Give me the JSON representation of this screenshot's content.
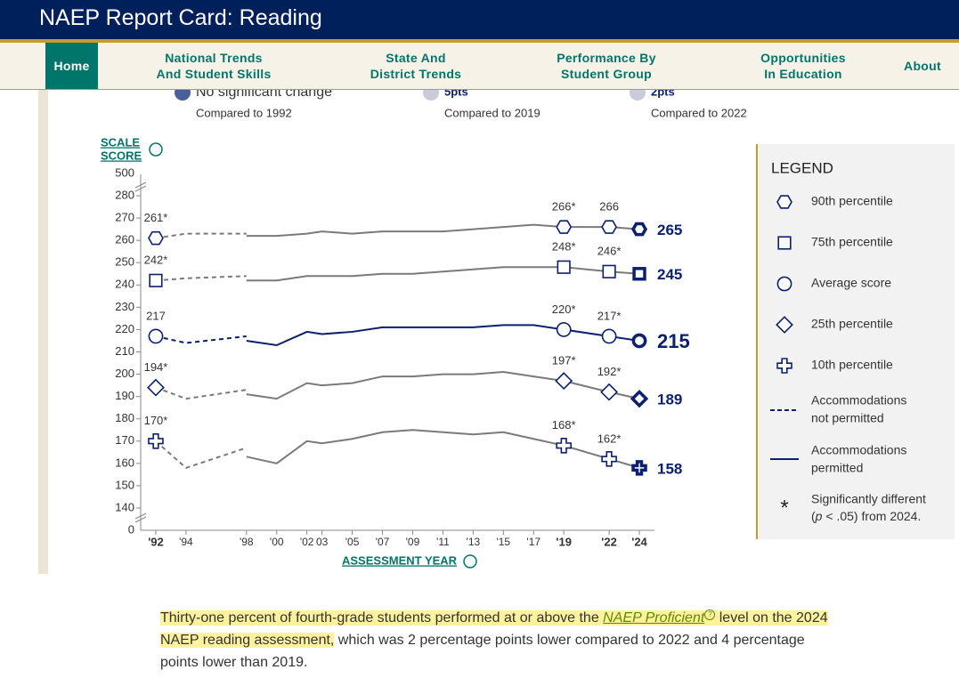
{
  "header": {
    "title": "NAEP Report Card: Reading"
  },
  "nav": {
    "items": [
      {
        "lines": [
          "Home"
        ]
      },
      {
        "lines": [
          "National Trends",
          "And Student Skills"
        ]
      },
      {
        "lines": [
          "State And",
          "District Trends"
        ]
      },
      {
        "lines": [
          "Performance By",
          "Student Group"
        ]
      },
      {
        "lines": [
          "Opportunities",
          "In Education"
        ]
      },
      {
        "lines": [
          "About"
        ]
      }
    ]
  },
  "summary": [
    {
      "change": "No significant change",
      "compared": "Compared to 1992"
    },
    {
      "change": "5pts",
      "compared": "Compared to 2019"
    },
    {
      "change": "2pts",
      "compared": "Compared to 2022"
    }
  ],
  "chart_data": {
    "type": "line",
    "y_label_lines": [
      "SCALE",
      "SCORE"
    ],
    "x_label": "ASSESSMENT YEAR",
    "x": [
      1992,
      1994,
      1998,
      2000,
      2002,
      2003,
      2005,
      2007,
      2009,
      2011,
      2013,
      2015,
      2017,
      2019,
      2022,
      2024
    ],
    "xlim": [
      1991,
      2025
    ],
    "xticks": [
      {
        "value": 1992,
        "label": "'92"
      },
      {
        "value": 1994,
        "label": "'94"
      },
      {
        "value": 1998,
        "label": "'98"
      },
      {
        "value": 2000,
        "label": "'00"
      },
      {
        "value": 2002,
        "label": "'02"
      },
      {
        "value": 2003,
        "label": "03"
      },
      {
        "value": 2005,
        "label": "'05"
      },
      {
        "value": 2007,
        "label": "'07"
      },
      {
        "value": 2009,
        "label": "'09"
      },
      {
        "value": 2011,
        "label": "'11"
      },
      {
        "value": 2013,
        "label": "'13"
      },
      {
        "value": 2015,
        "label": "'15"
      },
      {
        "value": 2017,
        "label": "'17"
      },
      {
        "value": 2019,
        "label": "'19"
      },
      {
        "value": 2022,
        "label": "'22"
      },
      {
        "value": 2024,
        "label": "'24"
      }
    ],
    "xticks_bold": [
      1992,
      2019,
      2022,
      2024
    ],
    "labeled_years": [
      1992,
      2019,
      2022,
      2024
    ],
    "ylim": [
      140,
      280
    ],
    "yticks": [
      140,
      150,
      160,
      170,
      180,
      190,
      200,
      210,
      220,
      230,
      240,
      250,
      260,
      270,
      280
    ],
    "axis_break_labels": {
      "bottom": 0,
      "top": 500
    },
    "series": [
      {
        "name": "90th percentile",
        "marker": "hexagon",
        "color": "#7a7a7a",
        "values": [
          null,
          null,
          262,
          262,
          263,
          264,
          263,
          264,
          264,
          264,
          265,
          266,
          267,
          266,
          266,
          265
        ],
        "values_np": [
          261,
          263,
          263,
          null,
          null,
          null,
          null,
          null,
          null,
          null,
          null,
          null,
          null,
          null,
          null,
          null
        ],
        "value_labels": [
          null,
          null,
          null,
          null,
          null,
          null,
          null,
          null,
          null,
          null,
          null,
          null,
          null,
          "266*",
          null,
          null
        ],
        "np_value_labels": [
          "261*",
          null,
          null,
          null,
          null,
          null,
          null,
          null,
          null,
          null,
          null,
          null,
          null,
          null,
          null,
          null
        ]
      },
      {
        "name": "75th percentile",
        "marker": "square",
        "color": "#7a7a7a",
        "values": [
          null,
          null,
          242,
          242,
          244,
          244,
          244,
          245,
          245,
          246,
          247,
          248,
          248,
          248,
          246,
          245
        ],
        "values_np": [
          242,
          243,
          244,
          null,
          null,
          null,
          null,
          null,
          null,
          null,
          null,
          null,
          null,
          null,
          null,
          null
        ],
        "value_labels": [
          null,
          null,
          null,
          null,
          null,
          null,
          null,
          null,
          null,
          null,
          null,
          null,
          null,
          "248*",
          "246*",
          null
        ],
        "np_value_labels": [
          "242*",
          null,
          null,
          null,
          null,
          null,
          null,
          null,
          null,
          null,
          null,
          null,
          null,
          null,
          null,
          null
        ]
      },
      {
        "name": "Average score",
        "marker": "circle",
        "color": "#0b2070",
        "values": [
          null,
          null,
          215,
          213,
          219,
          218,
          219,
          221,
          221,
          221,
          221,
          222,
          222,
          220,
          217,
          215
        ],
        "values_np": [
          217,
          214,
          217,
          null,
          null,
          null,
          null,
          null,
          null,
          null,
          null,
          null,
          null,
          null,
          null,
          null
        ],
        "value_labels": [
          null,
          null,
          null,
          null,
          null,
          null,
          null,
          null,
          null,
          null,
          null,
          null,
          null,
          "220*",
          "217*",
          null
        ],
        "np_value_labels": [
          null,
          null,
          null,
          null,
          null,
          null,
          null,
          null,
          null,
          null,
          null,
          null,
          null,
          null,
          null,
          null
        ]
      },
      {
        "name": "25th percentile",
        "marker": "diamond",
        "color": "#7a7a7a",
        "values": [
          null,
          null,
          191,
          189,
          196,
          195,
          196,
          199,
          199,
          200,
          200,
          201,
          199,
          197,
          192,
          189
        ],
        "values_np": [
          194,
          189,
          193,
          null,
          null,
          null,
          null,
          null,
          null,
          null,
          null,
          null,
          null,
          null,
          null,
          null
        ],
        "value_labels": [
          null,
          null,
          null,
          null,
          null,
          null,
          null,
          null,
          null,
          null,
          null,
          null,
          null,
          "197*",
          "192*",
          null
        ],
        "np_value_labels": [
          "194*",
          null,
          null,
          null,
          null,
          null,
          null,
          null,
          null,
          null,
          null,
          null,
          null,
          null,
          null,
          null
        ]
      },
      {
        "name": "10th percentile",
        "marker": "plus",
        "color": "#7a7a7a",
        "values": [
          null,
          null,
          163,
          160,
          170,
          169,
          171,
          174,
          175,
          174,
          173,
          174,
          171,
          168,
          162,
          158
        ],
        "values_np": [
          170,
          158,
          167,
          null,
          null,
          null,
          null,
          null,
          null,
          null,
          null,
          null,
          null,
          null,
          null,
          null
        ],
        "value_labels": [
          null,
          null,
          null,
          null,
          null,
          null,
          null,
          null,
          null,
          null,
          null,
          null,
          null,
          "168*",
          "162*",
          null
        ],
        "np_value_labels": [
          "170*",
          null,
          null,
          null,
          null,
          null,
          null,
          null,
          null,
          null,
          null,
          null,
          null,
          null,
          null,
          null
        ]
      }
    ],
    "marker_color": "#0b2070",
    "legend": {
      "title": "LEGEND",
      "not_permitted_lines": [
        "Accommodations",
        "not permitted"
      ],
      "permitted_lines": [
        "Accommodations",
        "permitted"
      ],
      "sig_symbol": "*",
      "sig_lines": [
        "Significantly different"
      ],
      "sig_parts": [
        "(",
        "p",
        " < .05) from 2024."
      ]
    }
  },
  "paragraph": {
    "parts": [
      "Thirty-one percent of fourth-grade students performed at or above the ",
      "NAEP Proficient",
      " level on the ",
      "2024 NAEP reading assessment,",
      " which was 2 percentage points lower compared to 2022 and 4 percentage points lower than 2019."
    ]
  }
}
